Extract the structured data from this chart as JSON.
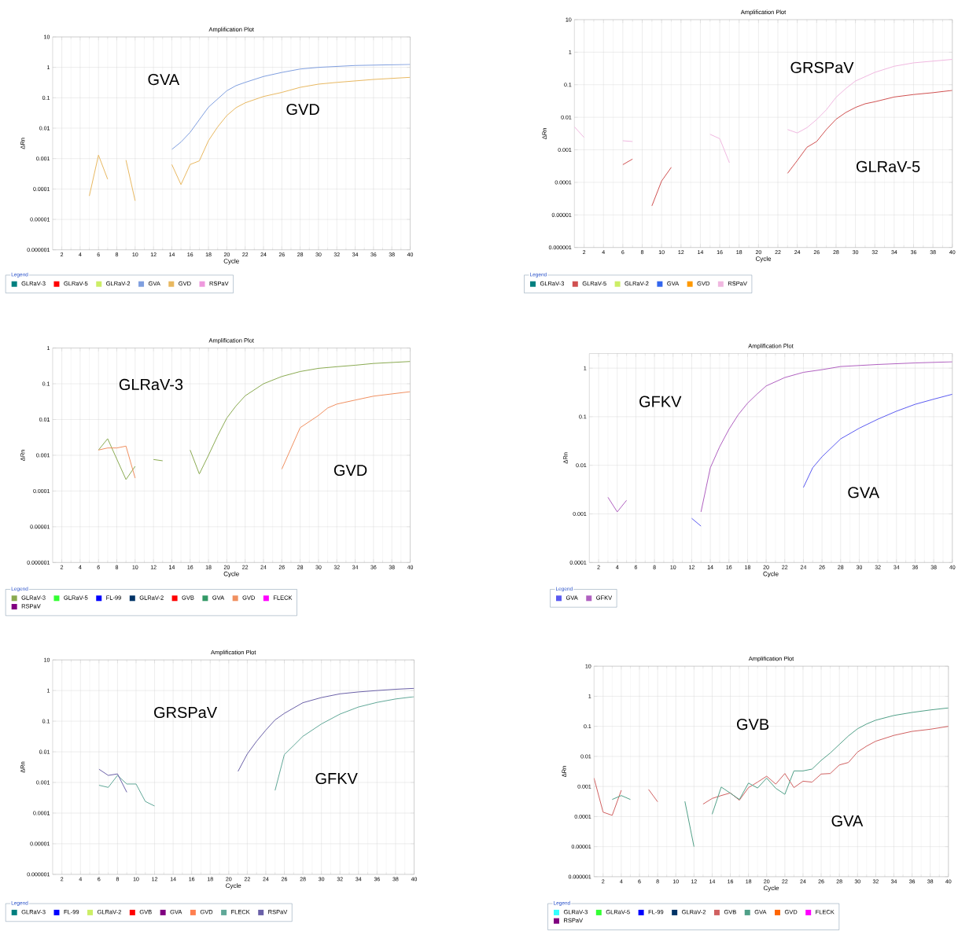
{
  "chart_data": [
    {
      "type": "line",
      "title": "Amplification Plot",
      "xlabel": "Cycle",
      "ylabel": "ΔRn",
      "legend_title": "Legend",
      "legend": "bottom",
      "grid": true,
      "log": "y",
      "xlim": [
        1,
        40
      ],
      "ylim": [
        1e-06,
        10
      ],
      "xticks": [
        2,
        4,
        6,
        8,
        10,
        12,
        14,
        16,
        18,
        20,
        22,
        24,
        26,
        28,
        30,
        32,
        34,
        36,
        38,
        40
      ],
      "yticks": [
        {
          "value": 1e-06,
          "label": "0.000001"
        },
        {
          "value": 1e-05,
          "label": "0.00001"
        },
        {
          "value": 0.0001,
          "label": "0.0001"
        },
        {
          "value": 0.001,
          "label": "0.001"
        },
        {
          "value": 0.01,
          "label": "0.01"
        },
        {
          "value": 0.1,
          "label": "0.1"
        },
        1,
        10
      ],
      "annotations": [
        "GVA",
        "GVD"
      ],
      "series": [
        {
          "name": "GLRaV-3",
          "color": "#007f7f"
        },
        {
          "name": "GLRaV-5",
          "color": "#ff0000"
        },
        {
          "name": "GLRaV-2",
          "color": "#ccee66"
        },
        {
          "name": "GVA",
          "color": "#7f9fdf",
          "x": [
            14,
            15,
            16,
            17,
            18,
            20,
            21,
            22,
            24,
            26,
            28,
            30,
            34,
            40
          ],
          "values": [
            0.002,
            0.0035,
            0.0073,
            0.019,
            0.049,
            0.17,
            0.25,
            0.32,
            0.5,
            0.68,
            0.88,
            1.0,
            1.15,
            1.25
          ]
        },
        {
          "name": "GVD",
          "color": "#e8b860",
          "x": [
            5,
            6,
            7,
            8,
            9,
            10,
            11,
            14,
            15,
            16,
            17,
            18,
            19,
            20,
            21,
            22,
            24,
            26,
            28,
            30,
            32,
            36,
            40
          ],
          "values": [
            5.9e-05,
            0.0013,
            0.00021,
            null,
            0.00089,
            4.1e-05,
            null,
            0.00064,
            0.00014,
            0.00064,
            0.00084,
            0.0039,
            0.011,
            0.026,
            0.047,
            0.068,
            0.11,
            0.15,
            0.22,
            0.28,
            0.32,
            0.4,
            0.47
          ]
        },
        {
          "name": "RSPaV",
          "color": "#ee99dd"
        }
      ]
    },
    {
      "type": "line",
      "title": "Amplification Plot",
      "xlabel": "Cycle",
      "ylabel": "ΔRn",
      "legend_title": "Legend",
      "legend": "bottom",
      "grid": true,
      "log": "y",
      "xlim": [
        1,
        40
      ],
      "ylim": [
        1e-06,
        10
      ],
      "xticks": [
        2,
        4,
        6,
        8,
        10,
        12,
        14,
        16,
        18,
        20,
        22,
        24,
        26,
        28,
        30,
        32,
        34,
        36,
        38,
        40
      ],
      "yticks": [
        {
          "value": 1e-06,
          "label": "0.000001"
        },
        {
          "value": 1e-05,
          "label": "0.00001"
        },
        {
          "value": 0.0001,
          "label": "0.0001"
        },
        {
          "value": 0.001,
          "label": "0.001"
        },
        {
          "value": 0.01,
          "label": "0.01"
        },
        {
          "value": 0.1,
          "label": "0.1"
        },
        1,
        10
      ],
      "annotations": [
        "GRSPaV",
        "GLRaV-5"
      ],
      "series": [
        {
          "name": "GLRaV-3",
          "color": "#007f7f"
        },
        {
          "name": "GLRaV-5",
          "color": "#d05050",
          "x": [
            6,
            7,
            8,
            9,
            10,
            11,
            12,
            23,
            24,
            25,
            26,
            27,
            28,
            29,
            30,
            31,
            32,
            34,
            36,
            38,
            40
          ],
          "values": [
            0.00035,
            0.00052,
            null,
            1.9e-05,
            0.00011,
            0.00029,
            null,
            0.00019,
            0.00047,
            0.0012,
            0.0018,
            0.0042,
            0.0087,
            0.014,
            0.02,
            0.026,
            0.03,
            0.042,
            0.05,
            0.057,
            0.067
          ]
        },
        {
          "name": "GLRaV-2",
          "color": "#ccee66"
        },
        {
          "name": "GVA",
          "color": "#3366ee"
        },
        {
          "name": "GVD",
          "color": "#ff9900"
        },
        {
          "name": "RSPaV",
          "color": "#f0b8e0",
          "x": [
            1,
            2,
            3,
            6,
            7,
            8,
            15,
            16,
            17,
            18,
            23,
            24,
            25,
            26,
            27,
            28,
            29,
            30,
            32,
            34,
            36,
            40
          ],
          "values": [
            0.0051,
            0.0024,
            null,
            0.0019,
            0.0018,
            null,
            0.003,
            0.0022,
            0.0004,
            null,
            0.0042,
            0.0033,
            0.0048,
            0.0085,
            0.017,
            0.041,
            0.076,
            0.13,
            0.24,
            0.37,
            0.47,
            0.6
          ]
        }
      ]
    },
    {
      "type": "line",
      "title": "Amplification Plot",
      "xlabel": "Cycle",
      "ylabel": "ΔRn",
      "legend_title": "Legend",
      "legend": "bottom",
      "grid": true,
      "log": "y",
      "xlim": [
        1,
        40
      ],
      "ylim": [
        1e-06,
        1
      ],
      "xticks": [
        2,
        4,
        6,
        8,
        10,
        12,
        14,
        16,
        18,
        20,
        22,
        24,
        26,
        28,
        30,
        32,
        34,
        36,
        38,
        40
      ],
      "yticks": [
        {
          "value": 1e-06,
          "label": "0.000001"
        },
        {
          "value": 1e-05,
          "label": "0.00001"
        },
        {
          "value": 0.0001,
          "label": "0.0001"
        },
        {
          "value": 0.001,
          "label": "0.001"
        },
        {
          "value": 0.01,
          "label": "0.01"
        },
        {
          "value": 0.1,
          "label": "0.1"
        },
        1
      ],
      "annotations": [
        "GLRaV-3",
        "GVD"
      ],
      "series": [
        {
          "name": "GLRaV-3",
          "color": "#8aaa50",
          "x": [
            6,
            7,
            9,
            10,
            11,
            12,
            13,
            14,
            16,
            17,
            18,
            19,
            20,
            21,
            22,
            24,
            26,
            28,
            30,
            32,
            34,
            36,
            40
          ],
          "values": [
            0.0014,
            0.0029,
            0.00021,
            0.00049,
            null,
            0.00076,
            0.0007,
            null,
            0.0014,
            0.0003,
            0.001,
            0.0035,
            0.011,
            0.024,
            0.046,
            0.1,
            0.16,
            0.22,
            0.27,
            0.3,
            0.33,
            0.37,
            0.42
          ]
        },
        {
          "name": "GLRaV-5",
          "color": "#33ff33"
        },
        {
          "name": "FL-99",
          "color": "#0000ff"
        },
        {
          "name": "GLRaV-2",
          "color": "#003366"
        },
        {
          "name": "GVB",
          "color": "#ff0000"
        },
        {
          "name": "GVA",
          "color": "#339966"
        },
        {
          "name": "GVD",
          "color": "#f09060",
          "x": [
            6,
            7,
            8,
            9,
            10,
            11,
            26,
            28,
            30,
            31,
            32,
            34,
            36,
            38,
            40
          ],
          "values": [
            0.0014,
            0.0016,
            0.0016,
            0.0018,
            0.00023,
            null,
            0.00041,
            0.0059,
            0.013,
            0.021,
            0.027,
            0.035,
            0.045,
            0.052,
            0.06
          ]
        },
        {
          "name": "FLECK",
          "color": "#ff00ff"
        },
        {
          "name": "RSPaV",
          "color": "#800080"
        }
      ]
    },
    {
      "type": "line",
      "title": "Amplification Plot",
      "xlabel": "Cycle",
      "ylabel": "ΔRn",
      "legend_title": "Legend",
      "legend": "bottom",
      "grid": true,
      "log": "y",
      "xlim": [
        1,
        40
      ],
      "ylim": [
        0.0001,
        2
      ],
      "xticks": [
        2,
        4,
        6,
        8,
        10,
        12,
        14,
        16,
        18,
        20,
        22,
        24,
        26,
        28,
        30,
        32,
        34,
        36,
        38,
        40
      ],
      "yticks": [
        {
          "value": 0.0001,
          "label": "0.0001"
        },
        {
          "value": 0.001,
          "label": "0.001"
        },
        {
          "value": 0.01,
          "label": "0.01"
        },
        {
          "value": 0.1,
          "label": "0.1"
        },
        1
      ],
      "annotations": [
        "GFKV",
        "GVA"
      ],
      "series": [
        {
          "name": "GVA",
          "color": "#5a5af0",
          "x": [
            12,
            13,
            14,
            24,
            25,
            26,
            28,
            30,
            32,
            34,
            36,
            38,
            40
          ],
          "values": [
            0.00081,
            0.00056,
            null,
            0.0035,
            0.0089,
            0.015,
            0.035,
            0.058,
            0.089,
            0.13,
            0.18,
            0.23,
            0.29
          ]
        },
        {
          "name": "GFKV",
          "color": "#b060c0",
          "x": [
            3,
            4,
            5,
            6,
            13,
            14,
            15,
            16,
            17,
            18,
            19,
            20,
            22,
            24,
            26,
            28,
            32,
            36,
            40
          ],
          "values": [
            0.0022,
            0.0011,
            0.0019,
            null,
            0.0011,
            0.0089,
            0.024,
            0.055,
            0.11,
            0.19,
            0.29,
            0.43,
            0.64,
            0.82,
            0.93,
            1.08,
            1.19,
            1.28,
            1.35
          ]
        }
      ]
    },
    {
      "type": "line",
      "title": "Amplification Plot",
      "xlabel": "Cycle",
      "ylabel": "ΔRn",
      "legend_title": "Legend",
      "legend": "bottom",
      "grid": true,
      "log": "y",
      "xlim": [
        1,
        40
      ],
      "ylim": [
        1e-06,
        10
      ],
      "xticks": [
        2,
        4,
        6,
        8,
        10,
        12,
        14,
        16,
        18,
        20,
        22,
        24,
        26,
        28,
        30,
        32,
        34,
        36,
        38,
        40
      ],
      "yticks": [
        {
          "value": 1e-06,
          "label": "0.000001"
        },
        {
          "value": 1e-05,
          "label": "0.00001"
        },
        {
          "value": 0.0001,
          "label": "0.0001"
        },
        {
          "value": 0.001,
          "label": "0.001"
        },
        {
          "value": 0.01,
          "label": "0.01"
        },
        {
          "value": 0.1,
          "label": "0.1"
        },
        1,
        10
      ],
      "annotations": [
        "GRSPaV",
        "GFKV"
      ],
      "series": [
        {
          "name": "GLRaV-3",
          "color": "#007f7f"
        },
        {
          "name": "FL-99",
          "color": "#0000ff"
        },
        {
          "name": "GLRaV-2",
          "color": "#ccee66"
        },
        {
          "name": "GVB",
          "color": "#ff0000"
        },
        {
          "name": "GVA",
          "color": "#800080"
        },
        {
          "name": "GVD",
          "color": "#ff7f50"
        },
        {
          "name": "FLECK",
          "color": "#60a898",
          "x": [
            6,
            7,
            8,
            9,
            10,
            11,
            12,
            13,
            25,
            26,
            27,
            28,
            30,
            32,
            34,
            36,
            38,
            40
          ],
          "values": [
            0.00081,
            0.00069,
            0.0017,
            0.00089,
            0.00089,
            0.00024,
            0.00017,
            null,
            0.00055,
            0.0081,
            0.016,
            0.032,
            0.081,
            0.17,
            0.29,
            0.41,
            0.53,
            0.63
          ]
        },
        {
          "name": "RSPaV",
          "color": "#6a60a8",
          "x": [
            6,
            7,
            8,
            9,
            10,
            21,
            22,
            23,
            24,
            25,
            26,
            28,
            30,
            32,
            34,
            36,
            38,
            40
          ],
          "values": [
            0.0027,
            0.0017,
            0.0019,
            0.00048,
            null,
            0.0023,
            0.0085,
            0.022,
            0.051,
            0.11,
            0.18,
            0.4,
            0.59,
            0.78,
            0.9,
            1.0,
            1.1,
            1.18
          ]
        }
      ]
    },
    {
      "type": "line",
      "title": "Amplification Plot",
      "xlabel": "Cycle",
      "ylabel": "ΔRn",
      "legend_title": "Legend",
      "legend": "bottom",
      "grid": true,
      "log": "y",
      "xlim": [
        1,
        40
      ],
      "ylim": [
        1e-06,
        10
      ],
      "xticks": [
        2,
        4,
        6,
        8,
        10,
        12,
        14,
        16,
        18,
        20,
        22,
        24,
        26,
        28,
        30,
        32,
        34,
        36,
        38,
        40
      ],
      "yticks": [
        {
          "value": 1e-06,
          "label": "0.000001"
        },
        {
          "value": 1e-05,
          "label": "0.00001"
        },
        {
          "value": 0.0001,
          "label": "0.0001"
        },
        {
          "value": 0.001,
          "label": "0.001"
        },
        {
          "value": 0.01,
          "label": "0.01"
        },
        {
          "value": 0.1,
          "label": "0.1"
        },
        1,
        10
      ],
      "annotations": [
        "GVB",
        "GVA"
      ],
      "series": [
        {
          "name": "GLRaV-3",
          "color": "#33ffff"
        },
        {
          "name": "GLRaV-5",
          "color": "#33ff33"
        },
        {
          "name": "FL-99",
          "color": "#0000ff"
        },
        {
          "name": "GLRaV-2",
          "color": "#003366"
        },
        {
          "name": "GVB",
          "color": "#d06060",
          "x": [
            1,
            2,
            3,
            4,
            5,
            7,
            8,
            9,
            13,
            14,
            15,
            16,
            17,
            18,
            19,
            20,
            21,
            22,
            23,
            24,
            25,
            26,
            27,
            28,
            29,
            30,
            31,
            32,
            34,
            36,
            38,
            40
          ],
          "values": [
            0.0019,
            0.00014,
            0.00011,
            0.00075,
            null,
            0.0008,
            0.00031,
            null,
            0.00026,
            0.0004,
            0.0005,
            0.00061,
            0.00035,
            0.00092,
            0.0014,
            0.0022,
            0.0012,
            0.0027,
            0.00092,
            0.0015,
            0.0014,
            0.0026,
            0.0027,
            0.0052,
            0.0063,
            0.014,
            0.022,
            0.032,
            0.05,
            0.068,
            0.08,
            0.1
          ]
        },
        {
          "name": "GVA",
          "color": "#50a088",
          "x": [
            3,
            4,
            5,
            6,
            11,
            12,
            13,
            14,
            15,
            16,
            17,
            18,
            19,
            20,
            21,
            22,
            23,
            24,
            25,
            26,
            27,
            28,
            29,
            30,
            31,
            32,
            34,
            36,
            38,
            40
          ],
          "values": [
            0.00037,
            0.0005,
            0.00037,
            null,
            0.00032,
            1e-05,
            null,
            0.00012,
            0.00096,
            0.0006,
            0.00037,
            0.0013,
            0.00089,
            0.0019,
            0.00087,
            0.00055,
            0.0033,
            0.0033,
            0.0038,
            0.0074,
            0.013,
            0.025,
            0.048,
            0.083,
            0.12,
            0.16,
            0.23,
            0.29,
            0.35,
            0.41
          ]
        },
        {
          "name": "GVD",
          "color": "#ff6600"
        },
        {
          "name": "FLECK",
          "color": "#ff00ff"
        },
        {
          "name": "RSPaV",
          "color": "#800080"
        }
      ]
    }
  ]
}
